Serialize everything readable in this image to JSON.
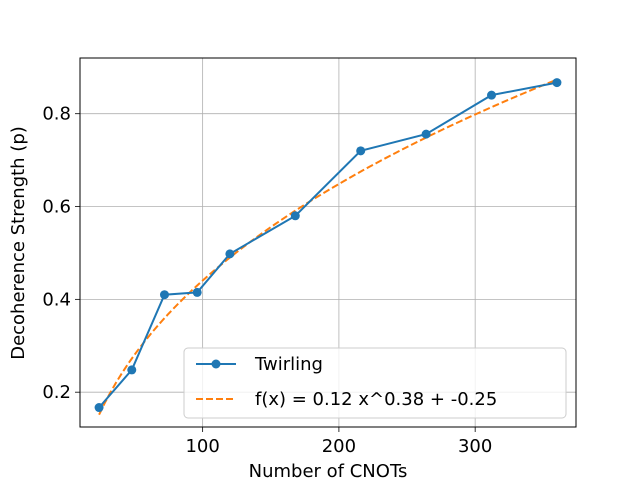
{
  "chart_data": {
    "type": "line",
    "xlabel": "Number of CNOTs",
    "ylabel": "Decoherence Strength (p)",
    "xlim": [
      10,
      374
    ],
    "ylim": [
      0.125,
      0.92
    ],
    "xticks": [
      100,
      200,
      300
    ],
    "yticks": [
      0.2,
      0.4,
      0.6,
      0.8
    ],
    "grid": true,
    "legend_position": "lower-right",
    "series": [
      {
        "name": "Twirling",
        "style": "solid-with-markers",
        "color": "#1f77b4",
        "x": [
          24,
          48,
          72,
          96,
          120,
          168,
          216,
          264,
          312,
          360
        ],
        "y": [
          0.167,
          0.248,
          0.41,
          0.415,
          0.498,
          0.58,
          0.72,
          0.756,
          0.84,
          0.867
        ]
      },
      {
        "name": "f(x) = 0.12 x^0.38 + -0.25",
        "style": "dashed",
        "color": "#ff7f0e",
        "fit": {
          "a": 0.12,
          "b": 0.38,
          "c": -0.25
        },
        "x_range": [
          24,
          360
        ]
      }
    ]
  }
}
